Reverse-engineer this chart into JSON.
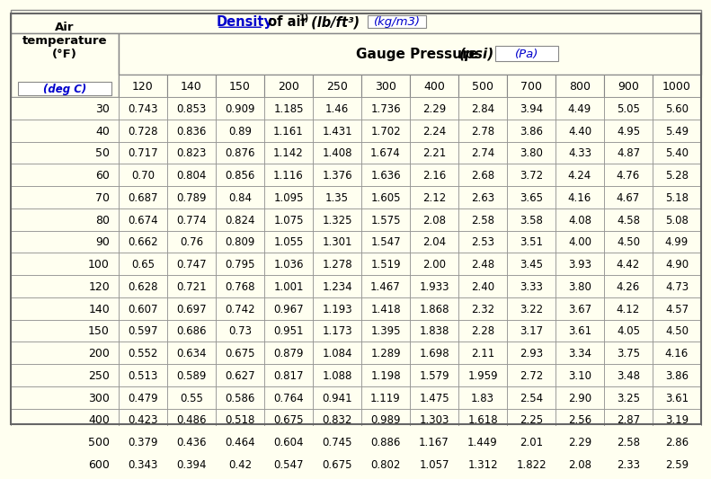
{
  "title_parts": {
    "density": "Density",
    "of_air": " of air ",
    "superscript": "1)",
    "units_imperial": " (lb/ft³)",
    "units_metric": "(kg/m3)"
  },
  "header_row1_left": "Air\ntemperature\n(°F)",
  "header_row1_left_sub": "(deg C)",
  "header_row1_right": "Gauge Pressure ",
  "header_row1_right_psi": "(psi)",
  "header_row1_right_pa": "(Pa)",
  "col_headers": [
    "120",
    "140",
    "150",
    "200",
    "250",
    "300",
    "400",
    "500",
    "700",
    "800",
    "900",
    "1000"
  ],
  "row_headers": [
    "30",
    "40",
    "50",
    "60",
    "70",
    "80",
    "90",
    "100",
    "120",
    "140",
    "150",
    "200",
    "250",
    "300",
    "400",
    "500",
    "600"
  ],
  "data": [
    [
      0.743,
      0.853,
      0.909,
      1.185,
      1.46,
      1.736,
      2.29,
      2.84,
      3.94,
      4.49,
      5.05,
      5.6
    ],
    [
      0.728,
      0.836,
      0.89,
      1.161,
      1.431,
      1.702,
      2.24,
      2.78,
      3.86,
      4.4,
      4.95,
      5.49
    ],
    [
      0.717,
      0.823,
      0.876,
      1.142,
      1.408,
      1.674,
      2.21,
      2.74,
      3.8,
      4.33,
      4.87,
      5.4
    ],
    [
      0.7,
      0.804,
      0.856,
      1.116,
      1.376,
      1.636,
      2.16,
      2.68,
      3.72,
      4.24,
      4.76,
      5.28
    ],
    [
      0.687,
      0.789,
      0.84,
      1.095,
      1.35,
      1.605,
      2.12,
      2.63,
      3.65,
      4.16,
      4.67,
      5.18
    ],
    [
      0.674,
      0.774,
      0.824,
      1.075,
      1.325,
      1.575,
      2.08,
      2.58,
      3.58,
      4.08,
      4.58,
      5.08
    ],
    [
      0.662,
      0.76,
      0.809,
      1.055,
      1.301,
      1.547,
      2.04,
      2.53,
      3.51,
      4.0,
      4.5,
      4.99
    ],
    [
      0.65,
      0.747,
      0.795,
      1.036,
      1.278,
      1.519,
      2.0,
      2.48,
      3.45,
      3.93,
      4.42,
      4.9
    ],
    [
      0.628,
      0.721,
      0.768,
      1.001,
      1.234,
      1.467,
      1.933,
      2.4,
      3.33,
      3.8,
      4.26,
      4.73
    ],
    [
      0.607,
      0.697,
      0.742,
      0.967,
      1.193,
      1.418,
      1.868,
      2.32,
      3.22,
      3.67,
      4.12,
      4.57
    ],
    [
      0.597,
      0.686,
      0.73,
      0.951,
      1.173,
      1.395,
      1.838,
      2.28,
      3.17,
      3.61,
      4.05,
      4.5
    ],
    [
      0.552,
      0.634,
      0.675,
      0.879,
      1.084,
      1.289,
      1.698,
      2.11,
      2.93,
      3.34,
      3.75,
      4.16
    ],
    [
      0.513,
      0.589,
      0.627,
      0.817,
      1.088,
      1.198,
      1.579,
      1.959,
      2.72,
      3.1,
      3.48,
      3.86
    ],
    [
      0.479,
      0.55,
      0.586,
      0.764,
      0.941,
      1.119,
      1.475,
      1.83,
      2.54,
      2.9,
      3.25,
      3.61
    ],
    [
      0.423,
      0.486,
      0.518,
      0.675,
      0.832,
      0.989,
      1.303,
      1.618,
      2.25,
      2.56,
      2.87,
      3.19
    ],
    [
      0.379,
      0.436,
      0.464,
      0.604,
      0.745,
      0.886,
      1.167,
      1.449,
      2.01,
      2.29,
      2.58,
      2.86
    ],
    [
      0.343,
      0.394,
      0.42,
      0.547,
      0.675,
      0.802,
      1.057,
      1.312,
      1.822,
      2.08,
      2.33,
      2.59
    ]
  ],
  "bg_color_main": "#fffff0",
  "bg_color_header": "#fffff0",
  "bg_color_white": "#ffffff",
  "bg_color_highlight": "#fffff0",
  "text_color_dark": "#000000",
  "text_color_blue": "#0000cc",
  "border_color": "#aaaaaa",
  "title_bg": "#fffff0",
  "highlight_row": 14
}
